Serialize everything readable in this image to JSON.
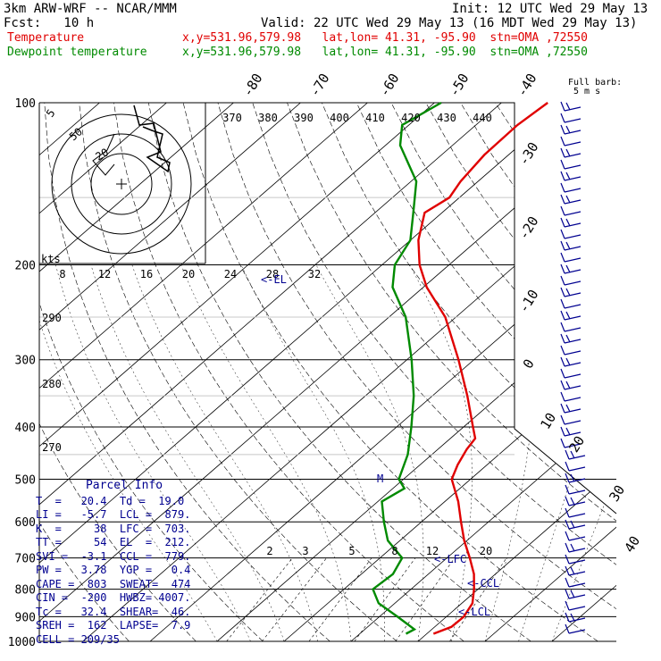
{
  "header": {
    "model": "3km ARW-WRF -- NCAR/MMM",
    "init": "Init: 12 UTC Wed 29 May 13",
    "fcst": "Fcst:   10 h",
    "valid": "Valid: 22 UTC Wed 29 May 13 (16 MDT Wed 29 May 13)",
    "temp_label": "Temperature",
    "dew_label": "Dewpoint temperature",
    "temp_loc": "x,y=531.96,579.98   lat,lon= 41.31, -95.90  stn=OMA ,72550",
    "dew_loc": "x,y=531.96,579.98   lat,lon= 41.31, -95.90  stn=OMA ,72550"
  },
  "colors": {
    "temperature": "#e00000",
    "dewpoint": "#008a00",
    "parcel_text": "#000090",
    "barbs": "#000090"
  },
  "chart_data": {
    "type": "line",
    "title": "",
    "xlabel": "",
    "ylabel": "",
    "pressure_levels": [
      100,
      200,
      300,
      400,
      500,
      600,
      700,
      800,
      900,
      1000
    ],
    "ylim": [
      1000,
      100
    ],
    "ylog": true,
    "skew_t_isotherms": [
      "-80",
      "-70",
      "-60",
      "-50",
      "-40",
      "-30",
      "-20",
      "-10",
      "0",
      "10",
      "20",
      "30",
      "40"
    ],
    "theta_labels_top": [
      "370",
      "380",
      "390",
      "400",
      "410",
      "420",
      "430",
      "440"
    ],
    "theta_labels_left": [
      "290",
      "280",
      "270"
    ],
    "mixing_ratio_labels": [
      "2",
      "3",
      "5",
      "8",
      "12",
      "20"
    ],
    "series": [
      {
        "name": "Temperature",
        "unit": "C",
        "points": [
          [
            968,
            21.0
          ],
          [
            940,
            22.5
          ],
          [
            900,
            22.6
          ],
          [
            850,
            21.6
          ],
          [
            800,
            19.4
          ],
          [
            750,
            16.8
          ],
          [
            700,
            13.4
          ],
          [
            650,
            9.6
          ],
          [
            600,
            5.9
          ],
          [
            550,
            2.0
          ],
          [
            500,
            -2.8
          ],
          [
            470,
            -4.4
          ],
          [
            440,
            -5.7
          ],
          [
            420,
            -6.3
          ],
          [
            400,
            -8.6
          ],
          [
            350,
            -14.8
          ],
          [
            300,
            -22.3
          ],
          [
            250,
            -31.6
          ],
          [
            220,
            -39.5
          ],
          [
            200,
            -44.4
          ],
          [
            180,
            -48.8
          ],
          [
            160,
            -52.6
          ],
          [
            150,
            -51.5
          ],
          [
            140,
            -52.6
          ],
          [
            125,
            -53.6
          ],
          [
            110,
            -53.8
          ],
          [
            100,
            -53.1
          ]
        ]
      },
      {
        "name": "Dewpoint temperature",
        "unit": "C",
        "points": [
          [
            968,
            16.9
          ],
          [
            950,
            17.4
          ],
          [
            900,
            12.7
          ],
          [
            850,
            7.6
          ],
          [
            800,
            4.3
          ],
          [
            750,
            4.7
          ],
          [
            700,
            3.3
          ],
          [
            650,
            -1.8
          ],
          [
            600,
            -5.6
          ],
          [
            550,
            -9.4
          ],
          [
            520,
            -8.3
          ],
          [
            500,
            -10.7
          ],
          [
            450,
            -13.6
          ],
          [
            400,
            -17.8
          ],
          [
            350,
            -22.8
          ],
          [
            300,
            -29.3
          ],
          [
            250,
            -37.5
          ],
          [
            220,
            -44.6
          ],
          [
            200,
            -48.1
          ],
          [
            180,
            -50.0
          ],
          [
            160,
            -54.3
          ],
          [
            140,
            -59.2
          ],
          [
            120,
            -67.8
          ],
          [
            110,
            -71.0
          ],
          [
            100,
            -69.0
          ]
        ]
      }
    ],
    "level_markers": [
      {
        "label": "<-EL",
        "p": 212
      },
      {
        "label": "<-LFC",
        "p": 703
      },
      {
        "label": "<-CCL",
        "p": 779
      },
      {
        "label": "<-LCL",
        "p": 879
      },
      {
        "label": "M",
        "p": 500
      }
    ],
    "wind_barbs_scale_label": "Full barb:",
    "wind_barbs_scale_value": "5 m s",
    "hodograph": {
      "speed_axis_label": "kts",
      "speed_ticks": [
        "8",
        "12",
        "16",
        "20",
        "24",
        "28",
        "32"
      ],
      "ring_labels": [
        "5",
        "50",
        "20"
      ]
    }
  },
  "parcel": {
    "title": "Parcel Info",
    "rows": [
      "T  =   20.4  Td =  19.0",
      "LI =   -5.7  LCL =  879.",
      "K  =     38  LFC =  703.",
      "TT =     54  EL  =  212.",
      "SVI =  -3.1  CCL =  779.",
      "PW =   3.78  YGP =   0.4",
      "CAPE =  803  SWEAT=  474",
      "CIN =  -200  HWBZ= 4007.",
      "Tc =   32.4  SHEAR=  46.",
      "SREH =  162  LAPSE=  7.9",
      "CELL = 209/35"
    ]
  }
}
